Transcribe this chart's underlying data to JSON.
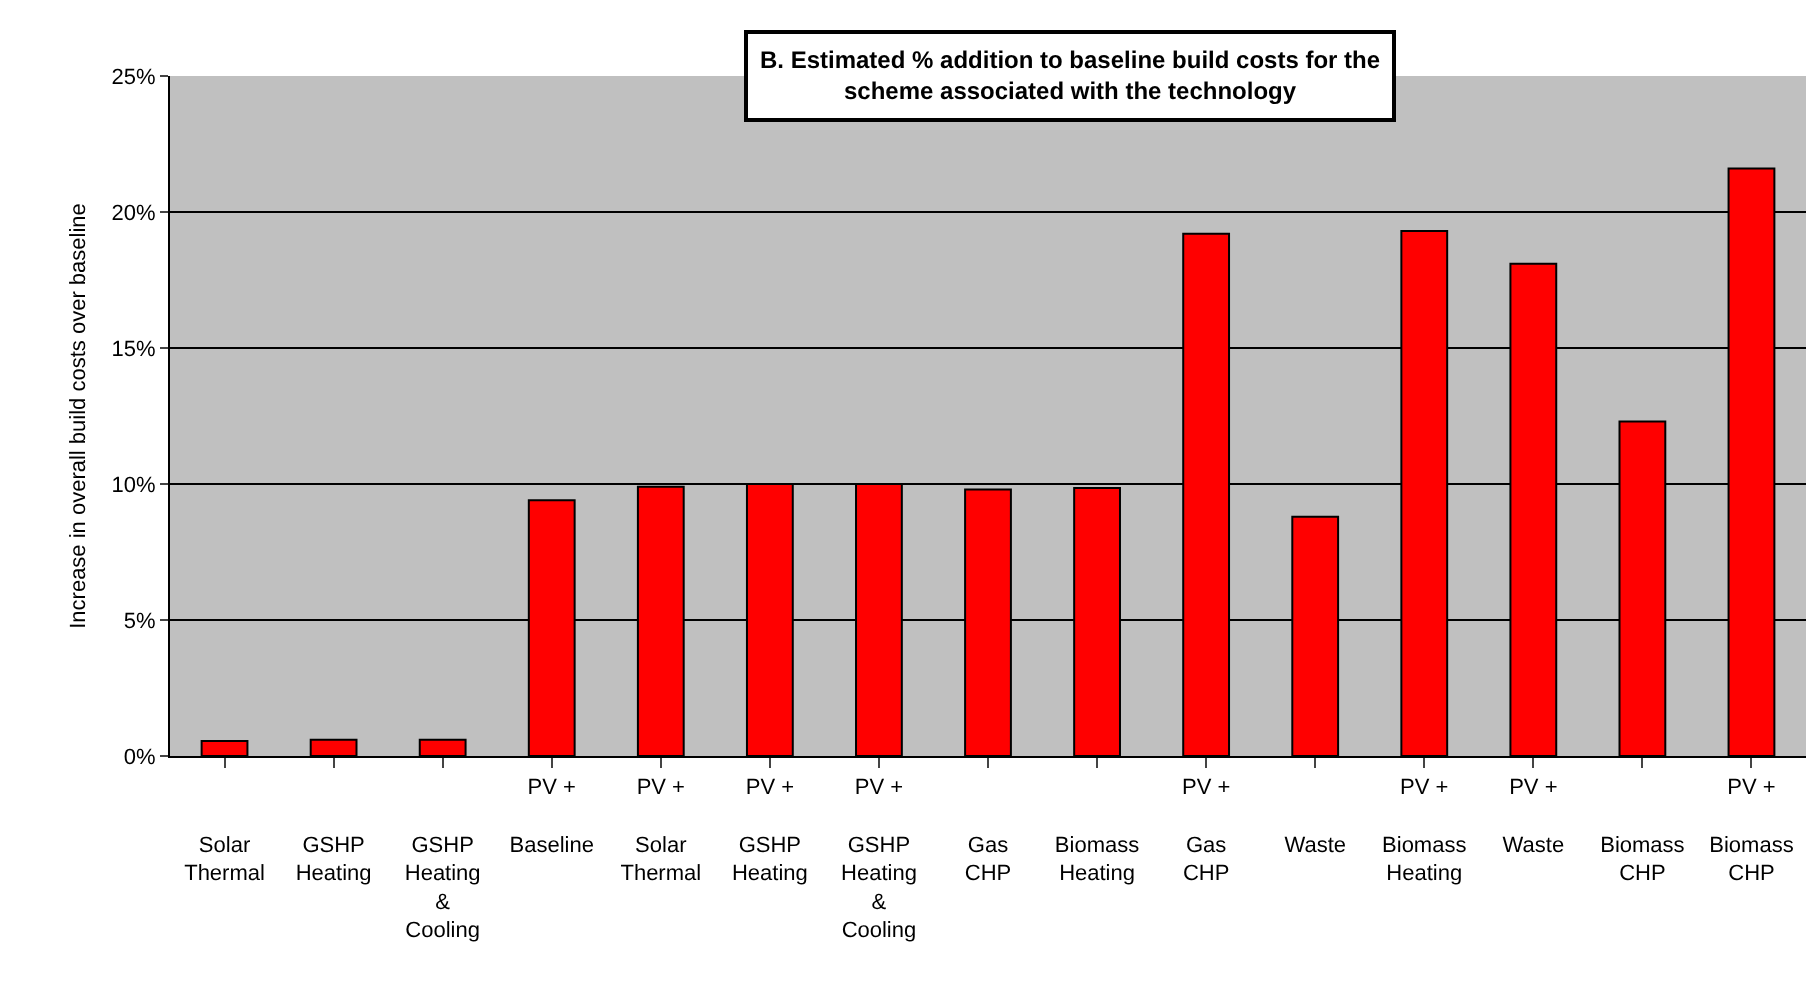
{
  "chart_data": {
    "type": "bar",
    "title": "B. Estimated % addition to baseline build costs for the\nscheme associated with the technology",
    "ylabel": "Increase in overall build costs over baseline",
    "categories": [
      "\n\nSolar\nThermal",
      "\n\nGSHP\nHeating",
      "\n\nGSHP\nHeating\n&\nCooling",
      "PV +\n\nBaseline",
      "PV +\n\nSolar\nThermal",
      "PV +\n\nGSHP\nHeating",
      "PV +\n\nGSHP\nHeating\n&\nCooling",
      "\n\nGas\nCHP",
      "\n\nBiomass\nHeating",
      "PV +\n\nGas\nCHP",
      "\n\nWaste",
      "PV +\n\nBiomass\nHeating",
      "PV +\n\nWaste",
      "\n\nBiomass\nCHP",
      "PV +\n\nBiomass\nCHP"
    ],
    "series": [
      {
        "color": "#ff0000",
        "values": [
          0.55,
          0.6,
          0.6,
          9.4,
          9.9,
          10.0,
          10.0,
          9.8,
          9.85,
          19.2,
          8.8,
          19.3,
          18.1,
          12.3,
          21.6
        ]
      }
    ],
    "ylim": [
      0,
      25
    ],
    "yticks": [
      {
        "value": 0,
        "label": "0%"
      },
      {
        "value": 5,
        "label": "5%"
      },
      {
        "value": 10,
        "label": "10%"
      },
      {
        "value": 15,
        "label": "15%"
      },
      {
        "value": 20,
        "label": "20%"
      },
      {
        "value": 25,
        "label": "25%"
      }
    ],
    "grid": "y"
  }
}
